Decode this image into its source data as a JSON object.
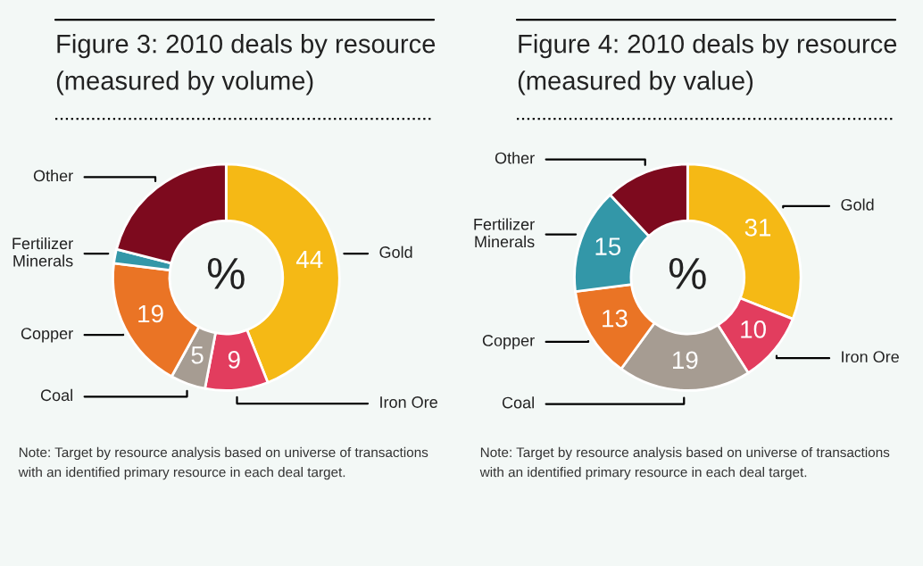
{
  "chart_data": [
    {
      "type": "donut",
      "title": "Figure 3: 2010 deals by resource",
      "subtitle": "(measured by volume)",
      "categories": [
        "Gold",
        "Iron Ore",
        "Coal",
        "Copper",
        "Fertilizer\nMinerals",
        "Other"
      ],
      "values": [
        44,
        9,
        5,
        19,
        2,
        21
      ],
      "value_labels": [
        "44",
        "9",
        "5",
        "19",
        null,
        null
      ],
      "colors": [
        "#f5b915",
        "#e23d5e",
        "#a69c92",
        "#ea7425",
        "#3397a8",
        "#7d0a1e"
      ],
      "annotations": [
        "%",
        "Note: Target by resource analysis based on universe of transactions",
        "with an identified primary resource in each deal target."
      ]
    },
    {
      "type": "donut",
      "title": "Figure 4: 2010 deals by resource",
      "subtitle": "(measured by value)",
      "categories": [
        "Gold",
        "Iron Ore",
        "Coal",
        "Copper",
        "Fertilizer\nMinerals",
        "Other"
      ],
      "values": [
        31,
        10,
        19,
        13,
        15,
        12
      ],
      "value_labels": [
        "31",
        "10",
        "19",
        "13",
        "15",
        null
      ],
      "colors": [
        "#f5b915",
        "#e23d5e",
        "#a69c92",
        "#ea7425",
        "#3397a8",
        "#7d0a1e"
      ],
      "annotations": [
        "%",
        "Note: Target by resource analysis based on universe of transactions",
        "with an identified primary resource in each deal target."
      ]
    }
  ]
}
